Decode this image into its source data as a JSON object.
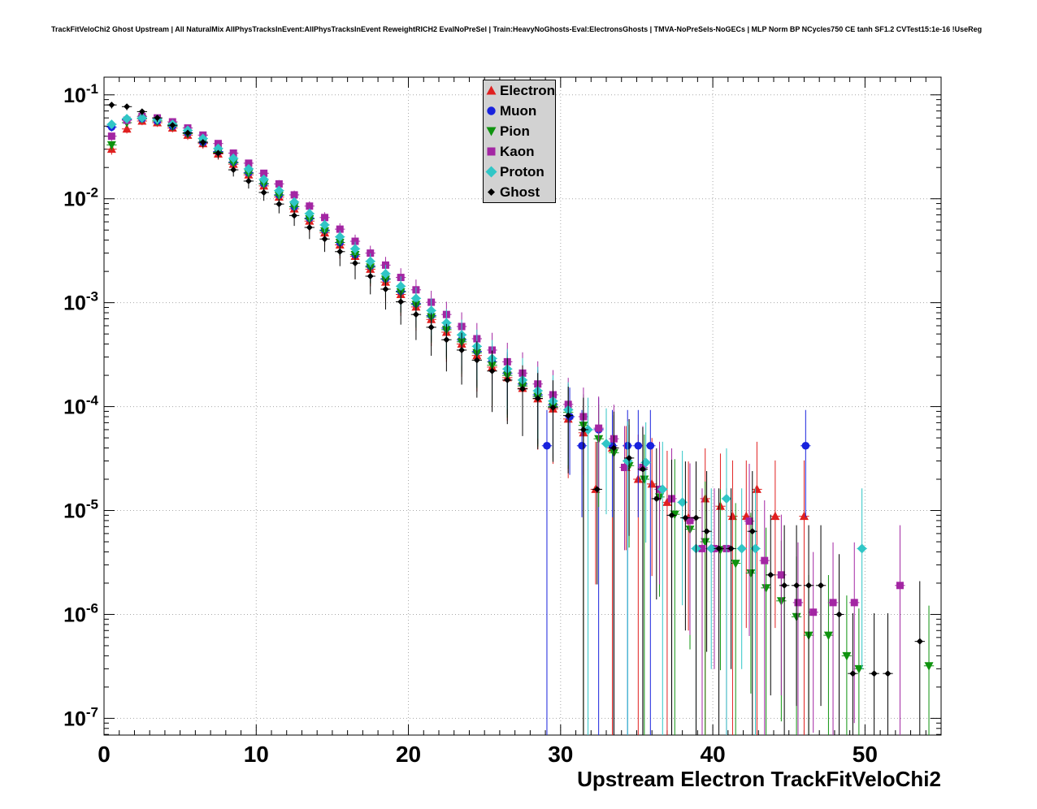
{
  "page": {
    "top_title": "TrackFitVeloChi2 Ghost Upstream | All NaturalMix AllPhysTracksInEvent:AllPhysTracksInEvent ReweightRICH2 EvalNoPreSel | Train:HeavyNoGhosts-Eval:ElectronsGhosts | TMVA-NoPreSels-NoGECs | MLP Norm BP NCycles750 CE tanh SF1.2 CVTest15:1e-16 !UseReg"
  },
  "chart_data": {
    "type": "scatter",
    "title": "",
    "x_axis": {
      "label": "Upstream Electron TrackFitVeloChi2",
      "min": 0,
      "max": 55,
      "ticks": [
        0,
        10,
        20,
        30,
        40,
        50
      ],
      "minor_tick_step": 1
    },
    "y_axis": {
      "scale": "log",
      "min": 6.9e-08,
      "max": 0.148,
      "tick_exponents": [
        -1,
        -2,
        -3,
        -4,
        -5,
        -6,
        -7
      ]
    },
    "grid": "dotted",
    "legend_position": "top-center",
    "series": [
      {
        "name": "Electron",
        "color": "#e02020",
        "marker": "triangle-up",
        "points": [
          [
            0.5,
            0.03
          ],
          [
            1.5,
            0.047
          ],
          [
            2.5,
            0.056
          ],
          [
            3.5,
            0.054
          ],
          [
            4.5,
            0.048
          ],
          [
            5.5,
            0.041
          ],
          [
            6.5,
            0.034
          ],
          [
            7.5,
            0.027
          ],
          [
            8.5,
            0.0215
          ],
          [
            9.5,
            0.017
          ],
          [
            10.5,
            0.0133
          ],
          [
            11.5,
            0.0104
          ],
          [
            12.5,
            0.008
          ],
          [
            13.5,
            0.0061
          ],
          [
            14.5,
            0.0047
          ],
          [
            15.5,
            0.0036
          ],
          [
            16.5,
            0.0028
          ],
          [
            17.5,
            0.0021
          ],
          [
            18.5,
            0.00158
          ],
          [
            19.5,
            0.0012
          ],
          [
            20.5,
            0.00091
          ],
          [
            21.5,
            0.00069
          ],
          [
            22.5,
            0.00052
          ],
          [
            23.5,
            0.0004
          ],
          [
            24.5,
            0.00031
          ],
          [
            25.5,
            0.00024
          ],
          [
            26.5,
            0.00019
          ],
          [
            27.5,
            0.00015
          ],
          [
            28.5,
            0.000119
          ],
          [
            29.5,
            9.5e-05
          ],
          [
            30.5,
            7.6e-05
          ],
          [
            31.5,
            5.6e-05
          ],
          [
            32.3,
            1.6e-05
          ],
          [
            33.4,
            4e-05
          ],
          [
            34.3,
            2.6e-05
          ],
          [
            35.1,
            2e-05
          ],
          [
            36.0,
            1.8e-05
          ],
          [
            37.0,
            1.2e-05
          ],
          [
            38.4,
            8.5e-06
          ],
          [
            39.5,
            1.3e-05
          ],
          [
            40.5,
            1.1e-05
          ],
          [
            41.3,
            8.8e-06
          ],
          [
            42.2,
            8.8e-06
          ],
          [
            42.9,
            1.6e-05
          ],
          [
            44.1,
            8.8e-06
          ],
          [
            46.0,
            8.8e-06
          ]
        ]
      },
      {
        "name": "Muon",
        "color": "#1822dd",
        "marker": "circle",
        "points": [
          [
            0.5,
            0.049
          ],
          [
            1.5,
            0.058
          ],
          [
            2.5,
            0.059
          ],
          [
            3.5,
            0.056
          ],
          [
            4.5,
            0.05
          ],
          [
            5.5,
            0.043
          ],
          [
            6.5,
            0.035
          ],
          [
            7.5,
            0.0285
          ],
          [
            8.5,
            0.0225
          ],
          [
            9.5,
            0.0178
          ],
          [
            10.5,
            0.014
          ],
          [
            11.5,
            0.0109
          ],
          [
            12.5,
            0.0084
          ],
          [
            13.5,
            0.0065
          ],
          [
            14.5,
            0.005
          ],
          [
            15.5,
            0.0038
          ],
          [
            16.5,
            0.0029
          ],
          [
            17.5,
            0.00225
          ],
          [
            18.5,
            0.0017
          ],
          [
            19.5,
            0.00129
          ],
          [
            20.5,
            0.00098
          ],
          [
            21.5,
            0.00075
          ],
          [
            22.5,
            0.00057
          ],
          [
            23.5,
            0.00044
          ],
          [
            24.5,
            0.00034
          ],
          [
            25.5,
            0.00027
          ],
          [
            26.5,
            0.00021
          ],
          [
            27.5,
            0.000165
          ],
          [
            28.5,
            0.00013
          ],
          [
            29.1,
            4.2e-05
          ],
          [
            29.5,
            0.000104
          ],
          [
            30.6,
            8e-05
          ],
          [
            31.4,
            4.2e-05
          ],
          [
            32.5,
            6e-05
          ],
          [
            33.4,
            4.2e-05
          ],
          [
            34.4,
            4.2e-05
          ],
          [
            35.1,
            4.2e-05
          ],
          [
            35.9,
            4.2e-05
          ],
          [
            46.1,
            4.2e-05
          ]
        ]
      },
      {
        "name": "Pion",
        "color": "#0f930f",
        "marker": "triangle-down",
        "points": [
          [
            0.5,
            0.033
          ],
          [
            1.5,
            0.054
          ],
          [
            2.5,
            0.059
          ],
          [
            3.5,
            0.056
          ],
          [
            4.5,
            0.05
          ],
          [
            5.5,
            0.0425
          ],
          [
            6.5,
            0.035
          ],
          [
            7.5,
            0.028
          ],
          [
            8.5,
            0.0222
          ],
          [
            9.5,
            0.0176
          ],
          [
            10.5,
            0.0139
          ],
          [
            11.5,
            0.0108
          ],
          [
            12.5,
            0.0084
          ],
          [
            13.5,
            0.0064
          ],
          [
            14.5,
            0.0049
          ],
          [
            15.5,
            0.0038
          ],
          [
            16.5,
            0.0029
          ],
          [
            17.5,
            0.0022
          ],
          [
            18.5,
            0.00168
          ],
          [
            19.5,
            0.00127
          ],
          [
            20.5,
            0.00096
          ],
          [
            21.5,
            0.00073
          ],
          [
            22.5,
            0.00055
          ],
          [
            23.5,
            0.00042
          ],
          [
            24.5,
            0.00033
          ],
          [
            25.5,
            0.00025
          ],
          [
            26.5,
            0.0002
          ],
          [
            27.5,
            0.000158
          ],
          [
            28.5,
            0.000125
          ],
          [
            29.5,
            0.0001
          ],
          [
            30.5,
            8.8e-05
          ],
          [
            31.5,
            6.6e-05
          ],
          [
            32.5,
            4.9e-05
          ],
          [
            33.5,
            3.6e-05
          ],
          [
            34.5,
            2.7e-05
          ],
          [
            35.5,
            2e-05
          ],
          [
            36.5,
            1.35e-05
          ],
          [
            37.5,
            9.2e-06
          ],
          [
            38.5,
            6.6e-06
          ],
          [
            39.5,
            5e-06
          ],
          [
            40.5,
            4.2e-06
          ],
          [
            41.5,
            3.1e-06
          ],
          [
            42.5,
            2.5e-06
          ],
          [
            43.5,
            1.8e-06
          ],
          [
            44.5,
            1.35e-06
          ],
          [
            45.5,
            9.5e-07
          ],
          [
            46.3,
            6.3e-07
          ],
          [
            47.6,
            6.3e-07
          ],
          [
            48.8,
            4e-07
          ],
          [
            49.6,
            3e-07
          ],
          [
            54.2,
            3.2e-07
          ]
        ]
      },
      {
        "name": "Kaon",
        "color": "#a326a3",
        "marker": "square",
        "points": [
          [
            0.5,
            0.04
          ],
          [
            1.5,
            0.057
          ],
          [
            2.5,
            0.062
          ],
          [
            3.5,
            0.06
          ],
          [
            4.5,
            0.055
          ],
          [
            5.5,
            0.048
          ],
          [
            6.5,
            0.041
          ],
          [
            7.5,
            0.034
          ],
          [
            8.5,
            0.0275
          ],
          [
            9.5,
            0.022
          ],
          [
            10.5,
            0.0176
          ],
          [
            11.5,
            0.0139
          ],
          [
            12.5,
            0.0109
          ],
          [
            13.5,
            0.0085
          ],
          [
            14.5,
            0.0066
          ],
          [
            15.5,
            0.0051
          ],
          [
            16.5,
            0.0039
          ],
          [
            17.5,
            0.003
          ],
          [
            18.5,
            0.0023
          ],
          [
            19.5,
            0.00175
          ],
          [
            20.5,
            0.00133
          ],
          [
            21.5,
            0.00101
          ],
          [
            22.5,
            0.00077
          ],
          [
            23.5,
            0.00059
          ],
          [
            24.5,
            0.00045
          ],
          [
            25.5,
            0.00035
          ],
          [
            26.5,
            0.00027
          ],
          [
            27.5,
            0.00021
          ],
          [
            28.5,
            0.000165
          ],
          [
            29.5,
            0.00013
          ],
          [
            30.5,
            0.000105
          ],
          [
            31.5,
            8e-05
          ],
          [
            32.5,
            6.2e-05
          ],
          [
            33.5,
            4.9e-05
          ],
          [
            34.2,
            2.6e-05
          ],
          [
            35.4,
            2.6e-05
          ],
          [
            36.5,
            1.6e-05
          ],
          [
            37.3,
            1.3e-05
          ],
          [
            38.5,
            8e-06
          ],
          [
            39.3,
            4.3e-06
          ],
          [
            40.1,
            4.3e-06
          ],
          [
            40.9,
            4.3e-06
          ],
          [
            42.4,
            7.9e-06
          ],
          [
            43.4,
            3.3e-06
          ],
          [
            44.5,
            2.4e-06
          ],
          [
            45.6,
            1.3e-06
          ],
          [
            46.6,
            1.05e-06
          ],
          [
            47.9,
            1.3e-06
          ],
          [
            49.3,
            1.3e-06
          ],
          [
            52.3,
            1.9e-06
          ]
        ]
      },
      {
        "name": "Proton",
        "color": "#30c6c6",
        "marker": "diamond",
        "points": [
          [
            0.5,
            0.052
          ],
          [
            1.5,
            0.059
          ],
          [
            2.5,
            0.06
          ],
          [
            3.5,
            0.058
          ],
          [
            4.5,
            0.052
          ],
          [
            5.5,
            0.0455
          ],
          [
            6.5,
            0.038
          ],
          [
            7.5,
            0.0305
          ],
          [
            8.5,
            0.0245
          ],
          [
            9.5,
            0.0194
          ],
          [
            10.5,
            0.0154
          ],
          [
            11.5,
            0.012
          ],
          [
            12.5,
            0.0093
          ],
          [
            13.5,
            0.0072
          ],
          [
            14.5,
            0.0056
          ],
          [
            15.5,
            0.0043
          ],
          [
            16.5,
            0.0033
          ],
          [
            17.5,
            0.0025
          ],
          [
            18.5,
            0.0019
          ],
          [
            19.5,
            0.00144
          ],
          [
            20.5,
            0.0011
          ],
          [
            21.5,
            0.00084
          ],
          [
            22.5,
            0.00064
          ],
          [
            23.5,
            0.00049
          ],
          [
            24.5,
            0.00038
          ],
          [
            25.5,
            0.00029
          ],
          [
            26.5,
            0.00023
          ],
          [
            27.5,
            0.00018
          ],
          [
            28.5,
            0.000142
          ],
          [
            29.5,
            0.000113
          ],
          [
            30.5,
            9.3e-05
          ],
          [
            31.8,
            6e-05
          ],
          [
            33.0,
            4.4e-05
          ],
          [
            34.4,
            3e-05
          ],
          [
            35.6,
            2.9e-05
          ],
          [
            36.7,
            1.6e-05
          ],
          [
            38.0,
            1.2e-05
          ],
          [
            38.9,
            4.3e-06
          ],
          [
            39.9,
            4.3e-06
          ],
          [
            40.9,
            1.3e-05
          ],
          [
            41.9,
            4.3e-06
          ],
          [
            42.8,
            4.3e-06
          ],
          [
            49.8,
            4.3e-06
          ]
        ]
      },
      {
        "name": "Ghost",
        "color": "#000000",
        "marker": "small-diamond",
        "points": [
          [
            0.5,
            0.08
          ],
          [
            1.5,
            0.077
          ],
          [
            2.5,
            0.069
          ],
          [
            3.5,
            0.06
          ],
          [
            4.5,
            0.051
          ],
          [
            5.5,
            0.043
          ],
          [
            6.5,
            0.035
          ],
          [
            7.5,
            0.0275
          ],
          [
            8.5,
            0.019
          ],
          [
            9.5,
            0.0148
          ],
          [
            10.5,
            0.0115
          ],
          [
            11.5,
            0.0089
          ],
          [
            12.5,
            0.0069
          ],
          [
            13.5,
            0.0053
          ],
          [
            14.5,
            0.0041
          ],
          [
            15.5,
            0.0031
          ],
          [
            16.5,
            0.0024
          ],
          [
            17.5,
            0.0018
          ],
          [
            18.5,
            0.00135
          ],
          [
            19.5,
            0.00102
          ],
          [
            20.5,
            0.00077
          ],
          [
            21.5,
            0.00058
          ],
          [
            22.5,
            0.00044
          ],
          [
            23.5,
            0.00035
          ],
          [
            24.5,
            0.00028
          ],
          [
            25.5,
            0.00022
          ],
          [
            26.5,
            0.00018
          ],
          [
            27.5,
            0.000148
          ],
          [
            28.5,
            0.00012
          ],
          [
            29.5,
            9.8e-05
          ],
          [
            30.5,
            8.2e-05
          ],
          [
            31.5,
            6e-05
          ],
          [
            32.4,
            1.6e-05
          ],
          [
            33.5,
            4e-05
          ],
          [
            34.5,
            3.2e-05
          ],
          [
            35.4,
            2.5e-05
          ],
          [
            36.3,
            1.3e-05
          ],
          [
            37.3,
            9e-06
          ],
          [
            38.2,
            8.5e-06
          ],
          [
            38.9,
            8.5e-06
          ],
          [
            39.6,
            6.3e-06
          ],
          [
            40.4,
            4.3e-06
          ],
          [
            41.2,
            4.3e-06
          ],
          [
            42.6,
            6.3e-06
          ],
          [
            43.8,
            2.4e-06
          ],
          [
            44.7,
            1.9e-06
          ],
          [
            45.5,
            1.9e-06
          ],
          [
            46.3,
            1.9e-06
          ],
          [
            47.1,
            1.9e-06
          ],
          [
            48.3,
            1e-06
          ],
          [
            49.2,
            2.7e-07
          ],
          [
            50.6,
            2.7e-07
          ],
          [
            51.5,
            2.7e-07
          ],
          [
            53.6,
            5.5e-07
          ]
        ]
      }
    ]
  }
}
